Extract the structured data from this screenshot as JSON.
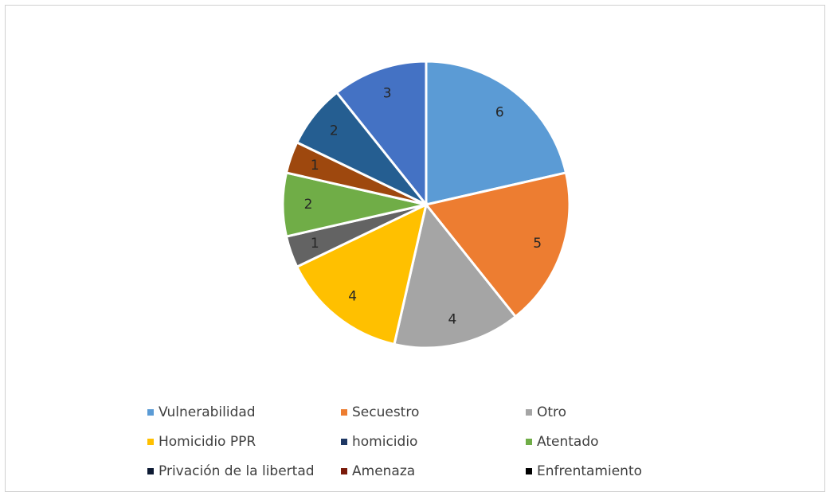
{
  "chart_data": {
    "type": "pie",
    "title": "",
    "categories": [
      "Vulnerabilidad",
      "Secuestro",
      "Otro",
      "Homicidio PPR",
      "homicidio",
      "Atentado",
      "Privación de la libertad",
      "Amenaza",
      "Enfrentamiento"
    ],
    "values": [
      6,
      5,
      4,
      4,
      3,
      2,
      2,
      1,
      1
    ],
    "data_labels": [
      "6",
      "5",
      "4",
      "4",
      "3",
      "2",
      "2",
      "1",
      "1"
    ],
    "slice_order": [
      0,
      1,
      2,
      3,
      8,
      5,
      7,
      6,
      4
    ],
    "colors": [
      "#5b9bd5",
      "#ed7d31",
      "#a5a5a5",
      "#ffc000",
      "#1f3864",
      "#70ad47",
      "#0d1a33",
      "#7a1a0a",
      "#000000"
    ],
    "slice_colors": [
      "#5b9bd5",
      "#ed7d31",
      "#a5a5a5",
      "#ffc000",
      "#4472c4",
      "#70ad47",
      "#255e91",
      "#9e480e",
      "#636363"
    ],
    "legend_position": "bottom"
  }
}
